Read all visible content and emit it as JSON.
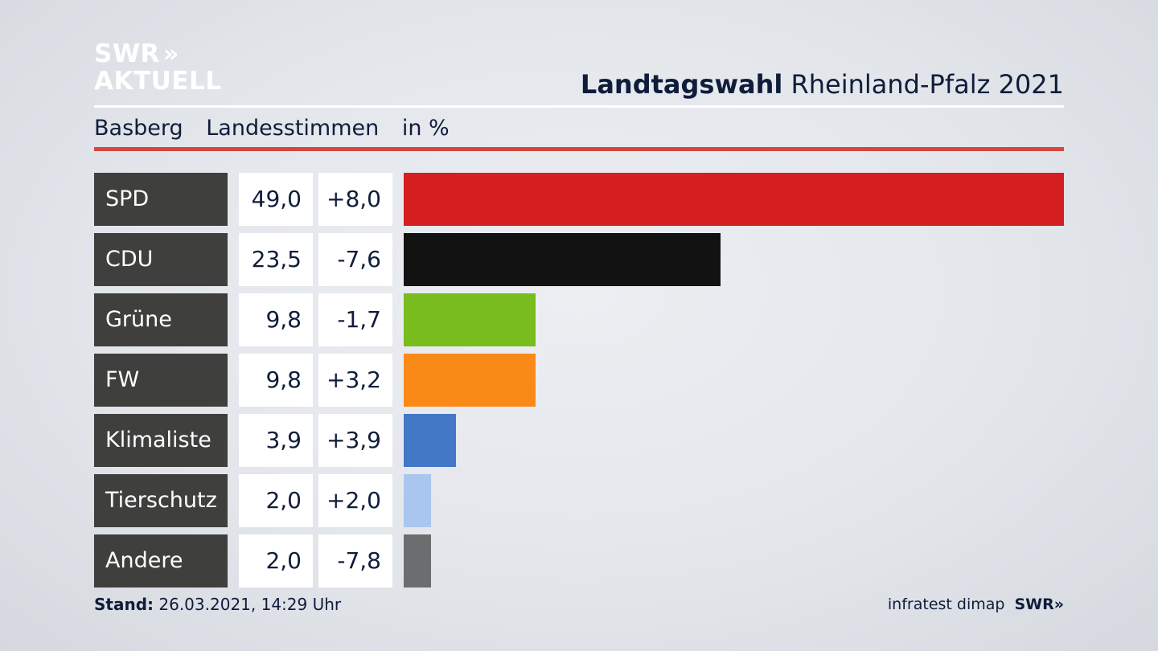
{
  "brand": {
    "logo_line1": "SWR",
    "logo_chevrons": "»",
    "logo_line2": "AKTUELL"
  },
  "header": {
    "title_bold": "Landtagswahl",
    "title_rest": "Rheinland-Pfalz 2021"
  },
  "subheader": {
    "location": "Basberg",
    "vote_type": "Landesstimmen",
    "unit": "in %"
  },
  "chart_data": {
    "type": "bar",
    "title": "Landtagswahl Rheinland-Pfalz 2021",
    "categories": [
      "SPD",
      "CDU",
      "Grüne",
      "FW",
      "Klimaliste",
      "Tierschutz",
      "Andere"
    ],
    "values": [
      49.0,
      23.5,
      9.8,
      9.8,
      3.9,
      2.0,
      2.0
    ],
    "value_labels": [
      "49,0",
      "23,5",
      "9,8",
      "9,8",
      "3,9",
      "2,0",
      "2,0"
    ],
    "diff_labels": [
      "+8,0",
      "-7,6",
      "-1,7",
      "+3,2",
      "+3,9",
      "+2,0",
      "-7,8"
    ],
    "colors": [
      "#d51f21",
      "#121212",
      "#78bc1e",
      "#fa8a17",
      "#4278c6",
      "#a9c7ee",
      "#6b6d6f"
    ],
    "orientation": "horizontal",
    "xlim": [
      0,
      49.0
    ]
  },
  "footer": {
    "stand_label": "Stand:",
    "stand_value": "26.03.2021, 14:29 Uhr",
    "source": "infratest dimap",
    "source_brand": "SWR»"
  }
}
